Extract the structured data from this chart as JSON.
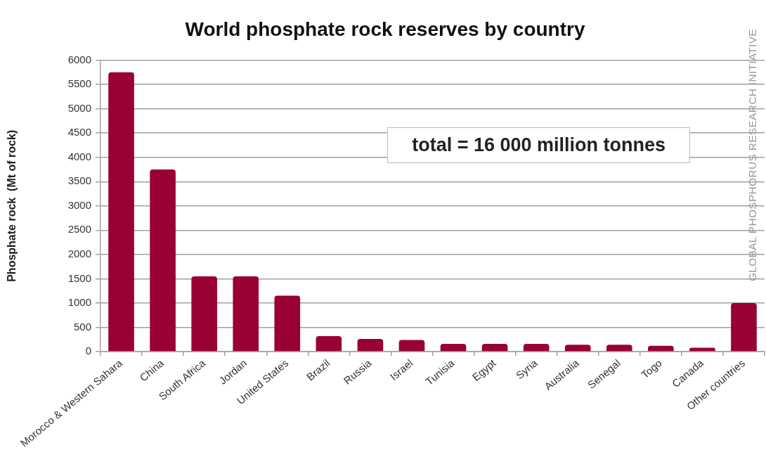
{
  "chart_data": {
    "type": "bar",
    "title": "World phosphate rock reserves by country",
    "ylabel": "Phosphate rock  (Mt of rock)",
    "categories": [
      "Morocco & Western Sahara",
      "China",
      "South Africa",
      "Jordan",
      "United States",
      "Brazil",
      "Russia",
      "Israel",
      "Tunisia",
      "Egypt",
      "Syria",
      "Australia",
      "Senegal",
      "Togo",
      "Canada",
      "Other countries"
    ],
    "values": [
      5750,
      3750,
      1550,
      1550,
      1150,
      320,
      260,
      240,
      160,
      160,
      160,
      140,
      140,
      120,
      80,
      1000
    ],
    "color": "#990033",
    "ylim": [
      0,
      6000
    ],
    "yticks": [
      0,
      500,
      1000,
      1500,
      2000,
      2500,
      3000,
      3500,
      4000,
      4500,
      5000,
      5500,
      6000
    ],
    "grid": "y",
    "legend": false,
    "annotations": [
      "total = 16 000 million tonnes",
      "GLOBAL PHOSPHORUS RESEARCH INITIATIVE"
    ]
  }
}
